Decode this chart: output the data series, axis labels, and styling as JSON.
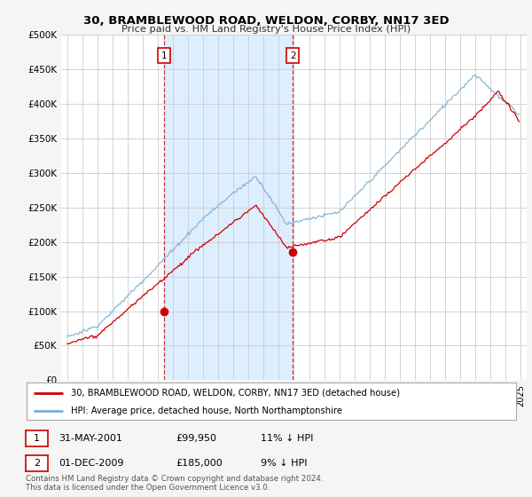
{
  "title": "30, BRAMBLEWOOD ROAD, WELDON, CORBY, NN17 3ED",
  "subtitle": "Price paid vs. HM Land Registry's House Price Index (HPI)",
  "ylabel_ticks": [
    "£0",
    "£50K",
    "£100K",
    "£150K",
    "£200K",
    "£250K",
    "£300K",
    "£350K",
    "£400K",
    "£450K",
    "£500K"
  ],
  "ytick_values": [
    0,
    50000,
    100000,
    150000,
    200000,
    250000,
    300000,
    350000,
    400000,
    450000,
    500000
  ],
  "ylim": [
    0,
    500000
  ],
  "hpi_color": "#7bafd4",
  "price_color": "#cc0000",
  "marker1_x": 2001.42,
  "marker1_y": 99950,
  "marker2_x": 2009.92,
  "marker2_y": 185000,
  "vline1_x": 2001.42,
  "vline2_x": 2009.92,
  "shade_color": "#ddeeff",
  "legend_line1": "30, BRAMBLEWOOD ROAD, WELDON, CORBY, NN17 3ED (detached house)",
  "legend_line2": "HPI: Average price, detached house, North Northamptonshire",
  "table_row1": [
    "1",
    "31-MAY-2001",
    "£99,950",
    "11% ↓ HPI"
  ],
  "table_row2": [
    "2",
    "01-DEC-2009",
    "£185,000",
    "9% ↓ HPI"
  ],
  "footer1": "Contains HM Land Registry data © Crown copyright and database right 2024.",
  "footer2": "This data is licensed under the Open Government Licence v3.0.",
  "bg_color": "#f5f5f5",
  "plot_bg_color": "#ffffff",
  "grid_color": "#cccccc",
  "xlim": [
    1994.6,
    2025.4
  ]
}
